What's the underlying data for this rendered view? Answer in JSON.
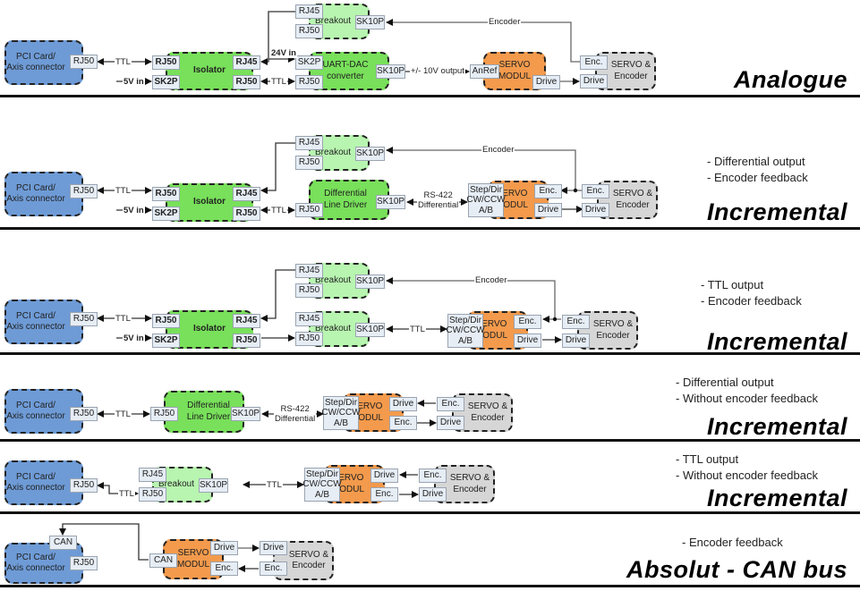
{
  "labels": {
    "pci": "PCI Card/\nAxis connector",
    "rj50": "RJ50",
    "rj45": "RJ45",
    "sk2p": "SK2P",
    "sk10p": "SK10P",
    "isolator": "Isolator",
    "breakout": "Breakout",
    "uart_dac": "UART-DAC\nconverter",
    "diff_driver": "Differential\nLine Driver",
    "servo_modul": "SERVO\nMODUL",
    "servo_encoder": "SERVO &\nEncoder",
    "enc": "Enc.",
    "drive": "Drive",
    "anref": "AnRef",
    "step_dir": "Step/Dir\nCW/CCW\nA/B",
    "can": "CAN",
    "ttl": "TTL",
    "v5_in": "5V in",
    "v24_in": "24V in",
    "encoder": "Encoder",
    "analog_out": "+/- 10V output",
    "rs422": "RS-422\nDifferential"
  },
  "sections": [
    {
      "title": "Analogue",
      "notes": []
    },
    {
      "title": "Incremental",
      "notes": [
        "- Differential output",
        "- Encoder feedback"
      ]
    },
    {
      "title": "Incremental",
      "notes": [
        "- TTL output",
        "- Encoder feedback"
      ]
    },
    {
      "title": "Incremental",
      "notes": [
        "- Differential output",
        "- Without encoder feedback"
      ]
    },
    {
      "title": "Incremental",
      "notes": [
        "- TTL output",
        "- Without encoder feedback"
      ]
    },
    {
      "title": "Absolut - CAN bus",
      "notes": [
        "- Encoder feedback"
      ]
    }
  ],
  "colors": {
    "pci": "#6e9bd6",
    "isolator": "#78e05a",
    "breakout": "#b8f5b0",
    "servo_modul": "#f39a4c",
    "servo_encoder": "#d6d6d6"
  }
}
